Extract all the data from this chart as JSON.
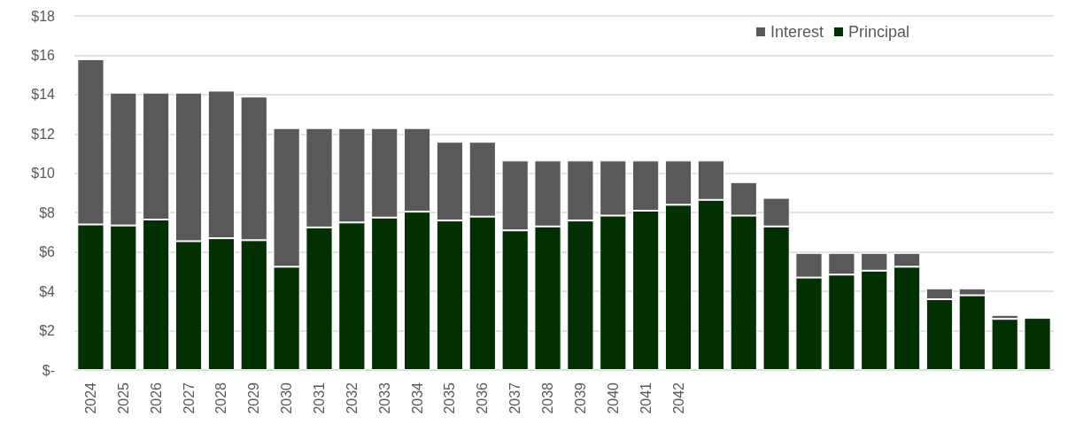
{
  "chart_data": {
    "type": "bar",
    "stacked": true,
    "categories": [
      "2024",
      "2025",
      "2026",
      "2027",
      "2028",
      "2029",
      "2030",
      "2031",
      "2032",
      "2033",
      "2034",
      "2035",
      "2036",
      "2037",
      "2038",
      "2039",
      "2040",
      "2041",
      "2042",
      null,
      null,
      null,
      null,
      null,
      null,
      null,
      null,
      null,
      null,
      null
    ],
    "series": [
      {
        "name": "Principal",
        "color": "#033003",
        "values": [
          7.4,
          7.35,
          7.65,
          6.55,
          6.7,
          6.6,
          5.25,
          7.25,
          7.5,
          7.75,
          8.05,
          7.6,
          7.8,
          7.1,
          7.3,
          7.6,
          7.85,
          8.1,
          8.4,
          8.65,
          7.85,
          7.3,
          4.7,
          4.85,
          5.05,
          5.25,
          3.6,
          3.8,
          2.6,
          2.65
        ]
      },
      {
        "name": "Interest",
        "color": "#595959",
        "values": [
          8.4,
          6.75,
          6.45,
          7.55,
          7.5,
          7.3,
          7.05,
          5.05,
          4.8,
          4.55,
          4.25,
          4.0,
          3.8,
          3.55,
          3.35,
          3.05,
          2.8,
          2.55,
          2.25,
          2.0,
          1.7,
          1.45,
          1.25,
          1.1,
          0.9,
          0.7,
          0.55,
          0.35,
          0.2,
          null
        ]
      }
    ],
    "ylim": [
      0,
      18
    ],
    "yticks": [
      {
        "value": 0,
        "label": "$-"
      },
      {
        "value": 2,
        "label": "$2"
      },
      {
        "value": 4,
        "label": "$4"
      },
      {
        "value": 6,
        "label": "$6"
      },
      {
        "value": 8,
        "label": "$8"
      },
      {
        "value": 10,
        "label": "$10"
      },
      {
        "value": 12,
        "label": "$12"
      },
      {
        "value": 14,
        "label": "$14"
      },
      {
        "value": 16,
        "label": "$16"
      },
      {
        "value": 18,
        "label": "$18"
      }
    ],
    "grid": "y",
    "legend": "top right"
  }
}
